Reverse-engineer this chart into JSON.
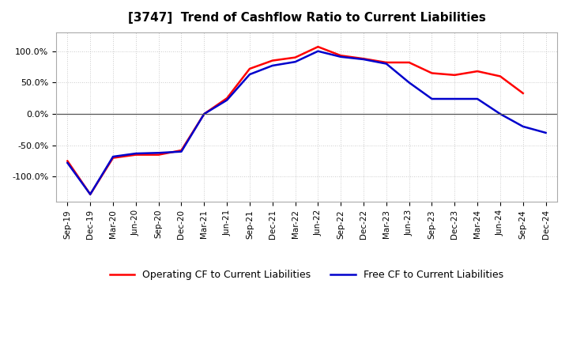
{
  "title": "[3747]  Trend of Cashflow Ratio to Current Liabilities",
  "x_labels": [
    "Sep-19",
    "Dec-19",
    "Mar-20",
    "Jun-20",
    "Sep-20",
    "Dec-20",
    "Mar-21",
    "Jun-21",
    "Sep-21",
    "Dec-21",
    "Mar-22",
    "Jun-22",
    "Sep-22",
    "Dec-22",
    "Mar-23",
    "Jun-23",
    "Sep-23",
    "Dec-23",
    "Mar-24",
    "Jun-24",
    "Sep-24",
    "Dec-24"
  ],
  "operating_cf": [
    -75,
    -128,
    -70,
    -65,
    -65,
    -58,
    0,
    25,
    72,
    85,
    90,
    107,
    93,
    88,
    82,
    82,
    65,
    62,
    68,
    60,
    33,
    null
  ],
  "free_cf": [
    -78,
    -128,
    -68,
    -63,
    -62,
    -60,
    0,
    22,
    63,
    77,
    83,
    100,
    91,
    87,
    80,
    50,
    24,
    24,
    24,
    0,
    -20,
    -30
  ],
  "ylim": [
    -140,
    130
  ],
  "yticks": [
    -100,
    -50,
    0,
    50,
    100
  ],
  "ytick_labels": [
    "-100.0%",
    "-50.0%",
    "0.0%",
    "50.0%",
    "100.0%"
  ],
  "operating_color": "#FF0000",
  "free_color": "#0000CC",
  "grid_color": "#BBBBBB",
  "bg_color": "#FFFFFF",
  "plot_bg_color": "#FFFFFF",
  "legend_operating": "Operating CF to Current Liabilities",
  "legend_free": "Free CF to Current Liabilities",
  "line_width": 1.8
}
